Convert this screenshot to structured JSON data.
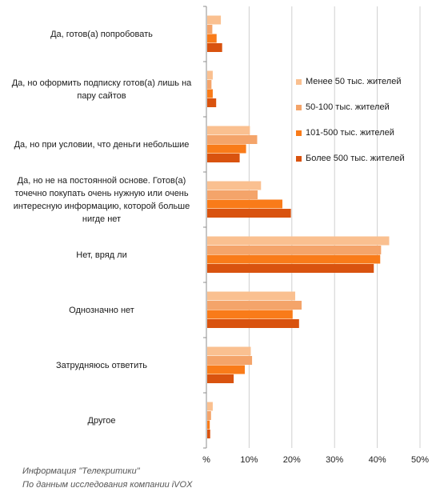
{
  "chart_data": {
    "type": "bar",
    "orientation": "horizontal",
    "categories": [
      "Да, готов(а) попробовать",
      "Да, но оформить подписку готов(а) лишь на пару сайтов",
      "Да, но при условии, что деньги небольшие",
      "Да, но не на постоянной основе. Готов(а) точечно покупать очень нужную или очень интересную информацию,  которой больше нигде нет",
      "Нет, вряд ли",
      "Однозначно нет",
      "Затрудняюсь ответить",
      "Другое"
    ],
    "series": [
      {
        "name": "Менее 50 тыс. жителей",
        "color": "#FAC090",
        "values": [
          3.2,
          1.3,
          10.0,
          12.6,
          42.6,
          20.6,
          10.2,
          1.3
        ]
      },
      {
        "name": "50-100 тыс. жителей",
        "color": "#F4A46A",
        "values": [
          1.2,
          1.0,
          11.7,
          11.8,
          40.7,
          22.1,
          10.5,
          0.9
        ]
      },
      {
        "name": "101-500 тыс. жителей",
        "color": "#F97B19",
        "values": [
          2.2,
          1.3,
          9.1,
          17.6,
          40.5,
          20.0,
          8.8,
          0.6
        ]
      },
      {
        "name": "Более 500 тыс. жителей",
        "color": "#D9530F",
        "values": [
          3.5,
          2.1,
          7.6,
          19.6,
          39.0,
          21.5,
          6.2,
          0.7
        ]
      }
    ],
    "xticks": [
      "%",
      "10%",
      "20%",
      "30%",
      "40%",
      "50%"
    ],
    "xlim": [
      0,
      50
    ],
    "grid": true,
    "legend": "right"
  },
  "footer": {
    "line1": "Информация \"Телекритики\"",
    "line2": "По данным исследования компании iVOX"
  }
}
